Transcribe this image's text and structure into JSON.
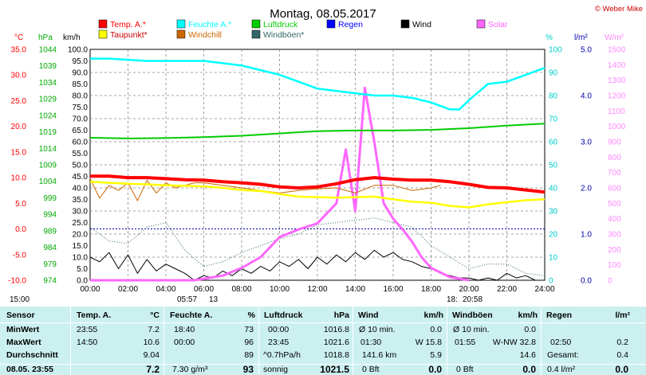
{
  "chart_data": {
    "type": "line",
    "title": "Montag, 08.05.2017",
    "credit": "© Weber Mike",
    "x_ticks": [
      "00:00",
      "02:00",
      "04:00",
      "06:00",
      "08:00",
      "10:00",
      "12:00",
      "14:00",
      "16:00",
      "18:00",
      "20:00",
      "22:00",
      "24:00"
    ],
    "axes": {
      "temp_c": {
        "label": "°C",
        "ticks": [
          "35.0",
          "30.0",
          "25.0",
          "20.0",
          "15.0",
          "10.0",
          "5.0",
          "0.0",
          "-5.0",
          "-10.0"
        ],
        "min": -10,
        "max": 35,
        "color": "#ff0000"
      },
      "pressure_hpa": {
        "label": "hPa",
        "ticks": [
          "1044",
          "1039",
          "1034",
          "1029",
          "1024",
          "1019",
          "1014",
          "1009",
          "1004",
          "999",
          "994",
          "989",
          "984",
          "979",
          "974"
        ],
        "min": 974,
        "max": 1044,
        "color": "#00aa00"
      },
      "wind_kmh": {
        "label": "km/h",
        "ticks": [
          "100.0",
          "95.0",
          "90.0",
          "85.0",
          "80.0",
          "75.0",
          "70.0",
          "65.0",
          "60.0",
          "55.0",
          "50.0",
          "45.0",
          "40.0",
          "35.0",
          "30.0",
          "25.0",
          "20.0",
          "15.0",
          "10.0",
          "5.0",
          "0.0"
        ],
        "min": 0,
        "max": 100,
        "color": "#000000"
      },
      "humidity_pct": {
        "label": "%",
        "ticks": [
          "100",
          "90",
          "80",
          "70",
          "60",
          "50",
          "40",
          "30",
          "20",
          "10",
          "0"
        ],
        "min": 0,
        "max": 100,
        "color": "#00cccc"
      },
      "rain_lm2": {
        "label": "l/m²",
        "ticks": [
          "5.0",
          "4.0",
          "3.0",
          "2.0",
          "1.0",
          "0.0"
        ],
        "min": 0,
        "max": 5,
        "color": "#0000aa"
      },
      "solar_wm2": {
        "label": "W/m²",
        "ticks": [
          "1500",
          "1400",
          "1300",
          "1200",
          "1100",
          "1000",
          "900",
          "800",
          "700",
          "600",
          "500",
          "400",
          "300",
          "200",
          "100",
          "0"
        ],
        "min": 0,
        "max": 1500,
        "color": "#ff88ff"
      }
    },
    "legend": [
      {
        "name": "Temp. A.*",
        "color": "#ff0000"
      },
      {
        "name": "Feuchte A.*",
        "color": "#00ffff"
      },
      {
        "name": "Luftdruck",
        "color": "#00cc00"
      },
      {
        "name": "Regen",
        "color": "#0000ff"
      },
      {
        "name": "Wind",
        "color": "#000000"
      },
      {
        "name": "Solar",
        "color": "#ff66ff"
      },
      {
        "name": "Taupunkt*",
        "color": "#ffff00"
      },
      {
        "name": "Windchill",
        "color": "#cc6600"
      },
      {
        "name": "Windböen*",
        "color": "#336666"
      }
    ],
    "series": [
      {
        "name": "Temp. A.*",
        "color": "#ff0000",
        "axis": "temp_c",
        "x": [
          0,
          1,
          2,
          3,
          4,
          5,
          6,
          7,
          8,
          9,
          10,
          11,
          12,
          13,
          14,
          15,
          16,
          17,
          18,
          19,
          20,
          21,
          22,
          23,
          24
        ],
        "values": [
          10.3,
          10.3,
          10.0,
          10.0,
          9.8,
          9.6,
          9.5,
          9.2,
          9.0,
          8.7,
          8.2,
          8.0,
          8.2,
          8.8,
          9.6,
          10.0,
          9.7,
          9.5,
          9.5,
          9.2,
          8.7,
          8.1,
          8.0,
          7.6,
          7.2
        ]
      },
      {
        "name": "Feuchte A.*",
        "color": "#00ffff",
        "axis": "humidity_pct",
        "x": [
          0,
          1,
          2,
          3,
          4,
          5,
          6,
          7,
          8,
          9,
          10,
          11,
          12,
          13,
          14,
          15,
          16,
          17,
          18,
          19,
          19.5,
          20,
          21,
          22,
          23,
          24
        ],
        "values": [
          96,
          96,
          95.5,
          95,
          95,
          95,
          95,
          94,
          93,
          91,
          89,
          86,
          83,
          82,
          81,
          80,
          80,
          79,
          77,
          74,
          74,
          78,
          85,
          86,
          89,
          92
        ]
      },
      {
        "name": "Luftdruck",
        "color": "#00cc00",
        "axis": "pressure_hpa",
        "x": [
          0,
          2,
          4,
          6,
          8,
          10,
          12,
          14,
          16,
          18,
          20,
          22,
          24
        ],
        "values": [
          1017.2,
          1017.0,
          1017.1,
          1017.4,
          1017.8,
          1018.5,
          1019.2,
          1019.4,
          1019.4,
          1019.6,
          1020.1,
          1020.9,
          1021.5
        ]
      },
      {
        "name": "Taupunkt*",
        "color": "#ffff00",
        "axis": "temp_c",
        "x": [
          0,
          1,
          2,
          3,
          4,
          5,
          6,
          7,
          8,
          9,
          10,
          11,
          12,
          13,
          14,
          15,
          16,
          17,
          18,
          19,
          20,
          21,
          22,
          23,
          24
        ],
        "values": [
          9.2,
          9.0,
          8.8,
          8.7,
          8.5,
          8.4,
          8.3,
          8.0,
          7.6,
          7.4,
          6.8,
          6.3,
          6.2,
          6.1,
          6.2,
          6.3,
          5.8,
          5.3,
          5.1,
          4.5,
          4.2,
          4.8,
          5.2,
          5.6,
          5.8
        ]
      },
      {
        "name": "Windchill",
        "color": "#cc6600",
        "axis": "temp_c",
        "x": [
          0,
          0.5,
          1,
          1.5,
          2,
          2.5,
          3,
          3.5,
          4,
          4.5,
          5,
          5.5,
          6,
          7,
          8,
          9,
          10,
          11,
          12,
          13,
          14,
          15,
          16,
          17,
          18,
          18.5
        ],
        "values": [
          9.8,
          6.0,
          8.5,
          7.5,
          9.0,
          5.5,
          9.5,
          7.0,
          9.0,
          8.0,
          8.5,
          9.0,
          9.0,
          8.5,
          8.0,
          7.5,
          7.0,
          7.5,
          7.8,
          8.0,
          7.0,
          8.5,
          8.5,
          7.5,
          8.0,
          8.5
        ]
      },
      {
        "name": "Wind",
        "color": "#000000",
        "axis": "wind_kmh",
        "x": [
          0,
          0.5,
          1,
          1.5,
          2,
          2.5,
          3,
          3.5,
          4,
          4.5,
          5,
          5.5,
          6,
          6.5,
          7,
          7.5,
          8,
          8.5,
          9,
          9.5,
          10,
          10.5,
          11,
          11.5,
          12,
          12.5,
          13,
          13.5,
          14,
          14.5,
          15,
          15.5,
          16,
          16.5,
          17,
          17.5,
          18,
          18.5,
          19,
          19.5,
          20,
          20.5,
          21,
          21.5,
          22,
          22.5,
          23,
          23.5,
          24
        ],
        "values": [
          10,
          8,
          12,
          5,
          11,
          3,
          9,
          4,
          7,
          5,
          3,
          0,
          2,
          1,
          4,
          2,
          5,
          3,
          6,
          4,
          8,
          6,
          9,
          5,
          10,
          7,
          11,
          8,
          12,
          9,
          13,
          10,
          12,
          9,
          8,
          6,
          5,
          3,
          2,
          1,
          1,
          0,
          1,
          0,
          3,
          1,
          2,
          0,
          0
        ]
      },
      {
        "name": "Windböen*",
        "color": "#336666",
        "axis": "wind_kmh",
        "x": [
          0,
          1,
          2,
          3,
          4,
          5,
          6,
          7,
          8,
          9,
          10,
          11,
          12,
          13,
          14,
          15,
          16,
          17,
          18,
          19,
          20,
          21,
          22,
          23,
          24
        ],
        "values": [
          23,
          17,
          16,
          23,
          25,
          13,
          6,
          8,
          12,
          15,
          18,
          20,
          24,
          25,
          26,
          27,
          25,
          23,
          15,
          10,
          5,
          7,
          7,
          3,
          2
        ]
      },
      {
        "name": "Solar",
        "color": "#ff66ff",
        "axis": "solar_wm2",
        "x": [
          0,
          5.5,
          6,
          7,
          8,
          9,
          10,
          11,
          12,
          13,
          13.5,
          14,
          14.5,
          15,
          15.5,
          16,
          16.5,
          17,
          17.5,
          18,
          19,
          20
        ],
        "values": [
          0,
          0,
          10,
          30,
          80,
          150,
          280,
          330,
          370,
          500,
          850,
          450,
          1250,
          900,
          500,
          400,
          330,
          250,
          150,
          80,
          20,
          0
        ]
      }
    ]
  },
  "sun": {
    "sunrise_left": "15:00",
    "sunrise": "05:57",
    "moon": "13",
    "moonset": "18:",
    "sunset": "20:58"
  },
  "table": {
    "headers": [
      "Sensor",
      "Temp. A.",
      "°C",
      "Feuchte A.",
      "%",
      "Luftdruck",
      "hPa",
      "Wind",
      "km/h",
      "Windböen",
      "km/h",
      "Regen",
      "l/m²"
    ],
    "min": {
      "label": "MinWert",
      "temp_time": "23:55",
      "temp": "7.2",
      "hum_time": "18:40",
      "hum": "73",
      "press_time": "00:00",
      "press": "1016.8",
      "wind_label": "Ø 10 min.",
      "wind": "0.0",
      "gust_label": "Ø 10 min.",
      "gust": "0.0",
      "rain_label": "",
      "rain": ""
    },
    "max": {
      "label": "MaxWert",
      "temp_time": "14:50",
      "temp": "10.6",
      "hum_time": "00:00",
      "hum": "96",
      "press_time": "23:45",
      "press": "1021.6",
      "wind_time": "01:30",
      "wind": "W 15.8",
      "gust_time": "01:55",
      "gust": "W-NW 32.8",
      "rain_time": "02:50",
      "rain": "0.2"
    },
    "avg": {
      "label": "Durchschnitt",
      "temp": "9.04",
      "hum": "89",
      "press_label": "^0.7hPa/h",
      "press": "1018.8",
      "wind_label": "141.6 km",
      "wind": "5.9",
      "gust": "14.6",
      "rain_label": "Gesamt:",
      "rain": "0.4"
    },
    "cur": {
      "label": "08.05. 23:55",
      "temp": "7.2",
      "hum_extra": "7.30 g/m³",
      "hum": "93",
      "press_label": "sonnig",
      "press": "1021.5",
      "wind_label": "0 Bft",
      "wind": "0.0",
      "gust_label": "0 Bft",
      "gust": "0.0",
      "rain_label": "0.4 l/m²",
      "rain": "0.0"
    }
  }
}
